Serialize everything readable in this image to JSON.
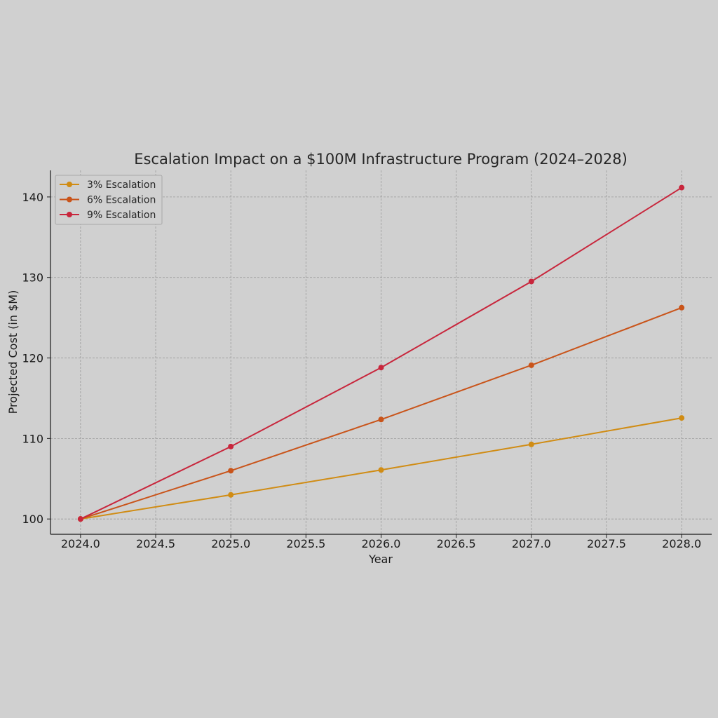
{
  "chart_data": {
    "type": "line",
    "title": "Escalation Impact on a $100M Infrastructure Program (2024–2028)",
    "xlabel": "Year",
    "ylabel": "Projected Cost (in $M)",
    "x": [
      2024,
      2025,
      2026,
      2027,
      2028
    ],
    "xticks": [
      "2024.0",
      "2024.5",
      "2025.0",
      "2025.5",
      "2026.0",
      "2026.5",
      "2027.0",
      "2027.5",
      "2028.0"
    ],
    "yticks": [
      "100",
      "110",
      "120",
      "130",
      "140"
    ],
    "xlim": [
      2023.8,
      2028.2
    ],
    "ylim": [
      98.1,
      143.3
    ],
    "grid": true,
    "legend_position": "top-left",
    "series": [
      {
        "name": "3% Escalation",
        "color": "#d08c14",
        "values": [
          100.0,
          103.0,
          106.09,
          109.27,
          112.55
        ]
      },
      {
        "name": "6% Escalation",
        "color": "#c9541a",
        "values": [
          100.0,
          106.0,
          112.36,
          119.1,
          126.25
        ]
      },
      {
        "name": "9% Escalation",
        "color": "#c8263c",
        "values": [
          100.0,
          109.0,
          118.81,
          129.5,
          141.16
        ]
      }
    ]
  }
}
